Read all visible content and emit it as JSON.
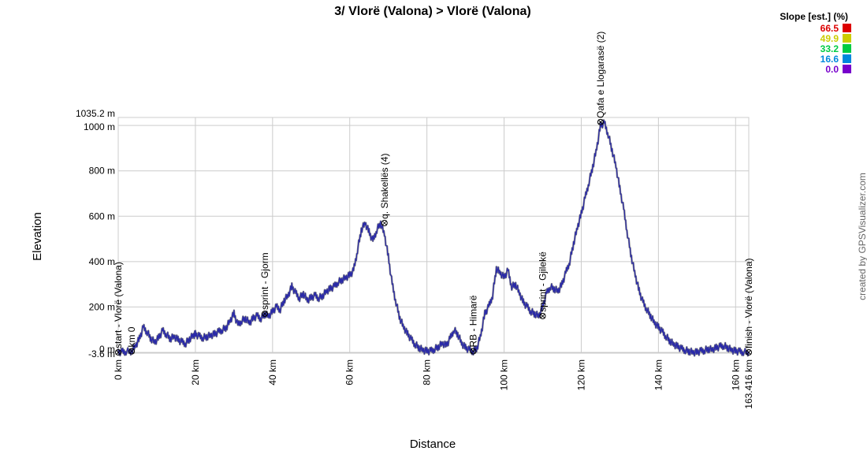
{
  "chart_data": {
    "type": "line",
    "title": "3/ Vlorë (Valona) > Vlorë (Valona)",
    "xlabel": "Distance",
    "ylabel": "Elevation",
    "xlim": [
      0,
      163.416
    ],
    "ylim": [
      -3.6,
      1035.2
    ],
    "grid": true,
    "x_ticks": [
      {
        "value": 0,
        "label": "0 km"
      },
      {
        "value": 20,
        "label": "20 km"
      },
      {
        "value": 40,
        "label": "40 km"
      },
      {
        "value": 60,
        "label": "60 km"
      },
      {
        "value": 80,
        "label": "80 km"
      },
      {
        "value": 100,
        "label": "100 km"
      },
      {
        "value": 120,
        "label": "120 km"
      },
      {
        "value": 140,
        "label": "140 km"
      },
      {
        "value": 160,
        "label": "160 km"
      },
      {
        "value": 163.416,
        "label": "163.416 km"
      }
    ],
    "y_ticks": [
      {
        "value": -3.6,
        "label": "-3.6 m"
      },
      {
        "value": 0,
        "label": "0 m"
      },
      {
        "value": 200,
        "label": "200 m"
      },
      {
        "value": 400,
        "label": "400 m"
      },
      {
        "value": 600,
        "label": "600 m"
      },
      {
        "value": 800,
        "label": "800 m"
      },
      {
        "value": 1000,
        "label": "1000 m"
      },
      {
        "value": 1035.2,
        "label": "1035.2 m"
      }
    ],
    "profile": {
      "x": [
        0,
        1,
        2,
        3.5,
        4.5,
        5.5,
        6.5,
        7.5,
        8.5,
        9.5,
        10.5,
        11.5,
        12.5,
        13.5,
        14.5,
        15.5,
        16.5,
        17.5,
        18.5,
        19.5,
        20,
        21,
        22,
        23,
        24,
        25,
        26,
        27,
        28,
        29,
        30,
        31,
        32,
        33,
        34,
        35,
        36,
        37,
        38,
        39,
        40,
        41,
        42,
        43,
        44,
        45,
        46,
        47,
        48,
        49,
        50,
        51,
        52,
        53,
        54,
        55,
        56,
        57,
        58,
        59,
        60,
        61,
        62,
        63,
        64,
        65,
        66,
        67,
        68,
        69,
        70,
        71,
        72,
        73,
        74,
        75,
        76,
        77,
        78,
        79,
        80,
        81,
        82,
        83,
        84,
        85,
        86,
        87,
        88,
        89,
        90,
        91,
        92,
        93,
        94,
        95,
        96,
        97,
        98,
        99,
        100,
        101,
        102,
        103,
        104,
        105,
        106,
        107,
        108,
        109,
        110,
        111,
        112,
        113,
        114,
        115,
        116,
        117,
        118,
        119,
        120,
        121,
        122,
        123,
        124,
        125,
        126,
        127,
        128,
        129,
        130,
        131,
        132,
        133,
        134,
        135,
        136,
        137,
        138,
        139,
        140,
        141,
        142,
        143,
        144,
        145,
        146,
        147,
        148,
        149,
        150,
        151,
        152,
        153,
        154,
        155,
        156,
        157,
        158,
        159,
        160,
        161,
        162,
        163.416
      ],
      "y": [
        0,
        2,
        4,
        5,
        30,
        60,
        110,
        90,
        60,
        45,
        65,
        95,
        80,
        60,
        70,
        55,
        45,
        40,
        60,
        75,
        80,
        70,
        65,
        70,
        75,
        80,
        90,
        100,
        110,
        140,
        170,
        120,
        140,
        150,
        130,
        150,
        160,
        150,
        170,
        160,
        180,
        200,
        190,
        230,
        250,
        290,
        260,
        240,
        260,
        230,
        240,
        250,
        240,
        250,
        270,
        280,
        290,
        310,
        320,
        330,
        340,
        360,
        450,
        540,
        570,
        530,
        490,
        540,
        570,
        520,
        420,
        300,
        220,
        150,
        110,
        80,
        55,
        35,
        20,
        10,
        5,
        5,
        15,
        25,
        40,
        30,
        60,
        100,
        80,
        40,
        20,
        10,
        5,
        20,
        80,
        170,
        200,
        250,
        370,
        350,
        330,
        360,
        290,
        300,
        260,
        220,
        200,
        180,
        170,
        160,
        200,
        260,
        290,
        280,
        270,
        300,
        350,
        400,
        480,
        550,
        610,
        680,
        750,
        820,
        900,
        1000,
        1010,
        960,
        890,
        820,
        720,
        630,
        520,
        420,
        340,
        270,
        220,
        190,
        160,
        130,
        110,
        90,
        70,
        50,
        35,
        25,
        15,
        10,
        5,
        0,
        0,
        5,
        10,
        15,
        12,
        20,
        25,
        30,
        20,
        10,
        5,
        3,
        2,
        0
      ]
    },
    "waypoints": [
      {
        "x": 0,
        "y": 0,
        "label": "start - Vlorë (Valona)"
      },
      {
        "x": 3.5,
        "y": 5,
        "label": "km 0"
      },
      {
        "x": 38,
        "y": 170,
        "label": "sprint - Gjorm"
      },
      {
        "x": 69,
        "y": 570,
        "label": "q. Shakellës (4)"
      },
      {
        "x": 92,
        "y": 5,
        "label": "RB - Himarë"
      },
      {
        "x": 110,
        "y": 160,
        "label": "sprint - Gjilekë"
      },
      {
        "x": 125,
        "y": 1015,
        "label": "Qafa e Llogarasë (2)"
      },
      {
        "x": 163.416,
        "y": 0,
        "label": "finish - Vlorë (Valona)"
      }
    ],
    "legend": {
      "title": "Slope [est.] (%)",
      "placement": "top-right",
      "items": [
        {
          "label": "66.5",
          "color": "#dd0000"
        },
        {
          "label": "49.9",
          "color": "#cccc00"
        },
        {
          "label": "33.2",
          "color": "#00cc44"
        },
        {
          "label": "16.6",
          "color": "#0088dd"
        },
        {
          "label": "0.0",
          "color": "#7700cc"
        }
      ]
    },
    "colors": {
      "line": "#2a2aa8",
      "line_shade": "#888888",
      "grid": "#cccccc"
    }
  },
  "credit": "created by GPSVisualizer.com"
}
